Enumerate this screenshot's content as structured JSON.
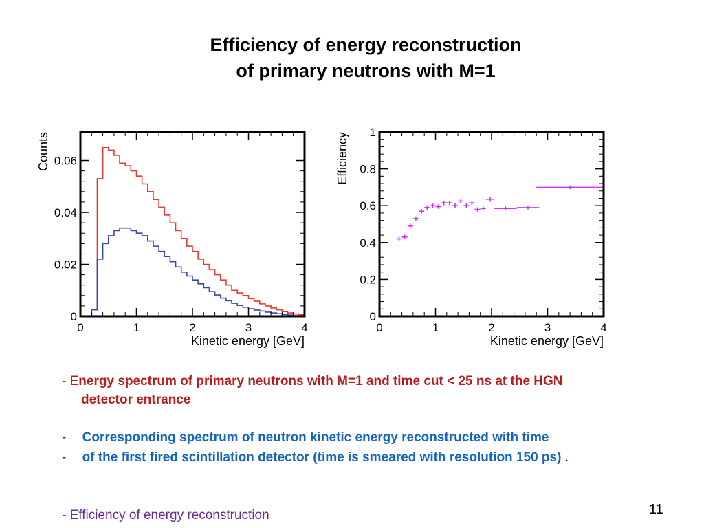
{
  "slide": {
    "title_line1": "Efficiency of energy reconstruction",
    "title_line2": "of primary neutrons with M=1",
    "page_number": "11"
  },
  "bullets": {
    "b1_dash": "-",
    "b1_first": "E",
    "b1_rest": "nergy spectrum of primary neutrons with M=1 and time cut < 25 ns at  the HGN",
    "b1_line2": "detector entrance",
    "b2_dash": "-",
    "b2_text": "Corresponding spectrum of neutron kinetic energy reconstructed with time",
    "b3_dash": "-",
    "b3_text": "of the first fired scintillation detector (time is smeared with resolution  150 ps)",
    "b3_period": ".",
    "b4_dash": "-",
    "b4_text": "Efficiency  of energy reconstruction"
  },
  "chart_data": [
    {
      "type": "line",
      "style": "step-histogram",
      "xlabel": "Kinetic energy [GeV]",
      "ylabel": "Counts",
      "xlim": [
        0,
        4
      ],
      "ylim": [
        0,
        0.071
      ],
      "xticks": [
        0,
        1,
        2,
        3,
        4
      ],
      "xtick_labels": [
        "0",
        "1",
        "2",
        "3",
        "4"
      ],
      "yticks": [
        0,
        0.02,
        0.04,
        0.06
      ],
      "ytick_labels": [
        "0",
        "0.02",
        "0.04",
        "0.06"
      ],
      "bin_width": 0.1,
      "x_start": 0.0,
      "series": [
        {
          "name": "Energy spectrum of primary neutrons (M=1, time cut < 25 ns)",
          "color": "#e53935",
          "values": [
            0,
            0,
            0.0025,
            0.053,
            0.065,
            0.064,
            0.062,
            0.059,
            0.058,
            0.056,
            0.054,
            0.051,
            0.048,
            0.045,
            0.042,
            0.039,
            0.036,
            0.033,
            0.03,
            0.027,
            0.025,
            0.022,
            0.02,
            0.018,
            0.016,
            0.014,
            0.012,
            0.01,
            0.009,
            0.008,
            0.0068,
            0.0058,
            0.0048,
            0.004,
            0.0032,
            0.0025,
            0.0018,
            0.0013,
            0.0009,
            0.0006
          ]
        },
        {
          "name": "Reconstructed neutron kinetic energy spectrum",
          "color": "#3949ab",
          "values": [
            0,
            0,
            0.0025,
            0.022,
            0.028,
            0.031,
            0.033,
            0.034,
            0.034,
            0.033,
            0.032,
            0.031,
            0.029,
            0.027,
            0.025,
            0.023,
            0.021,
            0.019,
            0.017,
            0.0155,
            0.014,
            0.0125,
            0.011,
            0.0095,
            0.0082,
            0.007,
            0.006,
            0.005,
            0.0042,
            0.0035,
            0.0029,
            0.0024,
            0.002,
            0.0016,
            0.0013,
            0.001,
            0.0007,
            0.0005,
            0.0003,
            0.0002
          ]
        }
      ]
    },
    {
      "type": "scatter",
      "style": "error-crosses",
      "xlabel": "Kinetic energy [GeV]",
      "ylabel": "Efficiency",
      "xlim": [
        0,
        4
      ],
      "ylim": [
        0,
        1
      ],
      "xticks": [
        0,
        1,
        2,
        3,
        4
      ],
      "xtick_labels": [
        "0",
        "1",
        "2",
        "3",
        "4"
      ],
      "yticks": [
        0,
        0.2,
        0.4,
        0.6,
        0.8,
        1
      ],
      "ytick_labels": [
        "0",
        "0.2",
        "0.4",
        "0.6",
        "0.8",
        "1"
      ],
      "color": "#cc33ff",
      "points": [
        {
          "x": 0.35,
          "y": 0.42,
          "xerr": 0.05,
          "yerr": 0.012
        },
        {
          "x": 0.45,
          "y": 0.43,
          "xerr": 0.05,
          "yerr": 0.012
        },
        {
          "x": 0.55,
          "y": 0.49,
          "xerr": 0.05,
          "yerr": 0.012
        },
        {
          "x": 0.65,
          "y": 0.53,
          "xerr": 0.05,
          "yerr": 0.012
        },
        {
          "x": 0.75,
          "y": 0.57,
          "xerr": 0.05,
          "yerr": 0.012
        },
        {
          "x": 0.85,
          "y": 0.59,
          "xerr": 0.05,
          "yerr": 0.012
        },
        {
          "x": 0.95,
          "y": 0.6,
          "xerr": 0.05,
          "yerr": 0.012
        },
        {
          "x": 1.05,
          "y": 0.595,
          "xerr": 0.05,
          "yerr": 0.012
        },
        {
          "x": 1.15,
          "y": 0.615,
          "xerr": 0.05,
          "yerr": 0.012
        },
        {
          "x": 1.25,
          "y": 0.615,
          "xerr": 0.05,
          "yerr": 0.012
        },
        {
          "x": 1.35,
          "y": 0.6,
          "xerr": 0.05,
          "yerr": 0.012
        },
        {
          "x": 1.45,
          "y": 0.625,
          "xerr": 0.05,
          "yerr": 0.012
        },
        {
          "x": 1.55,
          "y": 0.6,
          "xerr": 0.05,
          "yerr": 0.012
        },
        {
          "x": 1.65,
          "y": 0.615,
          "xerr": 0.05,
          "yerr": 0.012
        },
        {
          "x": 1.75,
          "y": 0.58,
          "xerr": 0.05,
          "yerr": 0.012
        },
        {
          "x": 1.85,
          "y": 0.585,
          "xerr": 0.05,
          "yerr": 0.012
        },
        {
          "x": 1.975,
          "y": 0.635,
          "xerr": 0.075,
          "yerr": 0.014
        },
        {
          "x": 2.25,
          "y": 0.585,
          "xerr": 0.2,
          "yerr": 0.01
        },
        {
          "x": 2.65,
          "y": 0.59,
          "xerr": 0.2,
          "yerr": 0.01
        },
        {
          "x": 3.4,
          "y": 0.7,
          "xerr": 0.6,
          "yerr": 0.01
        }
      ]
    }
  ]
}
